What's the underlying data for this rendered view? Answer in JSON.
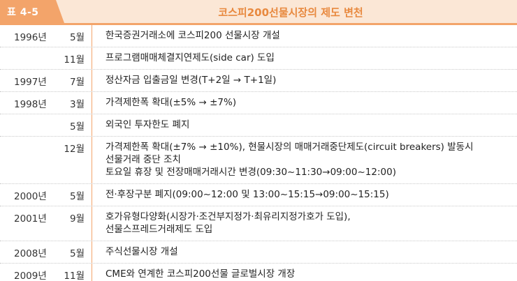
{
  "header": {
    "badge": "표 4-5",
    "title": "코스피200선물시장의 제도 변천"
  },
  "rows": [
    {
      "year": "1996년",
      "month": "5월",
      "lines": [
        "한국증권거래소에 코스피200 선물시장 개설"
      ]
    },
    {
      "year": "",
      "month": "11월",
      "lines": [
        "프로그램매매체결지연제도(side car) 도입"
      ]
    },
    {
      "year": "1997년",
      "month": "7월",
      "lines": [
        "정산자금 입출금일 변경(T+2일 → T+1일)"
      ]
    },
    {
      "year": "1998년",
      "month": "3월",
      "lines": [
        "가격제한폭 확대(±5% → ±7%)"
      ]
    },
    {
      "year": "",
      "month": "5월",
      "lines": [
        "외국인 투자한도 폐지"
      ]
    },
    {
      "year": "",
      "month": "12월",
      "lines": [
        "가격제한폭 확대(±7% → ±10%), 현물시장의 매매거래중단제도(circuit breakers) 발동시",
        "선물거래 중단 조치",
        "토요일 휴장 및 전장매매거래시간 변경(09:30~11:30→09:00~12:00)"
      ]
    },
    {
      "year": "2000년",
      "month": "5월",
      "lines": [
        "전·후장구분 폐지(09:00~12:00 및 13:00~15:15→09:00~15:15)"
      ]
    },
    {
      "year": "2001년",
      "month": "9월",
      "lines": [
        "호가유형다양화(시장가·조건부지정가·최유리지정가호가 도입),",
        "선물스프레드거래제도 도입"
      ]
    },
    {
      "year": "2008년",
      "month": "5월",
      "lines": [
        "주식선물시장 개설"
      ]
    },
    {
      "year": "2009년",
      "month": "11월",
      "lines": [
        "CME와 연계한 코스피200선물 글로벌시장 개장"
      ]
    }
  ]
}
